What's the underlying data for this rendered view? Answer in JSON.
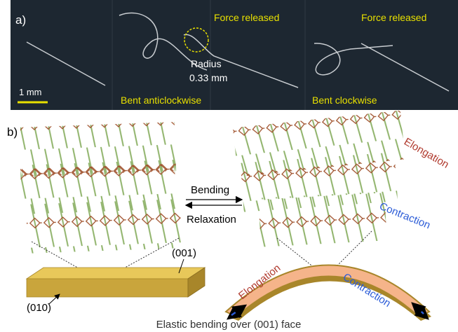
{
  "panel_a": {
    "label": "a)",
    "scale_bar": "1 mm",
    "force_released": [
      "Force released",
      "Force released"
    ],
    "radius_label": "Radius",
    "radius_value": "0.33 mm",
    "bent_labels": [
      "Bent anticlockwise",
      "Bent clockwise"
    ]
  },
  "panel_b": {
    "label": "b)",
    "bending": "Bending",
    "relaxation": "Relaxation",
    "lattice_elongation": "Elongation",
    "lattice_contraction": "Contraction",
    "face_001": "(001)",
    "face_010": "(010)",
    "crystal_elongation": "Elongation",
    "crystal_contraction": "Contraction",
    "caption": "Elastic bending over (001) face"
  }
}
